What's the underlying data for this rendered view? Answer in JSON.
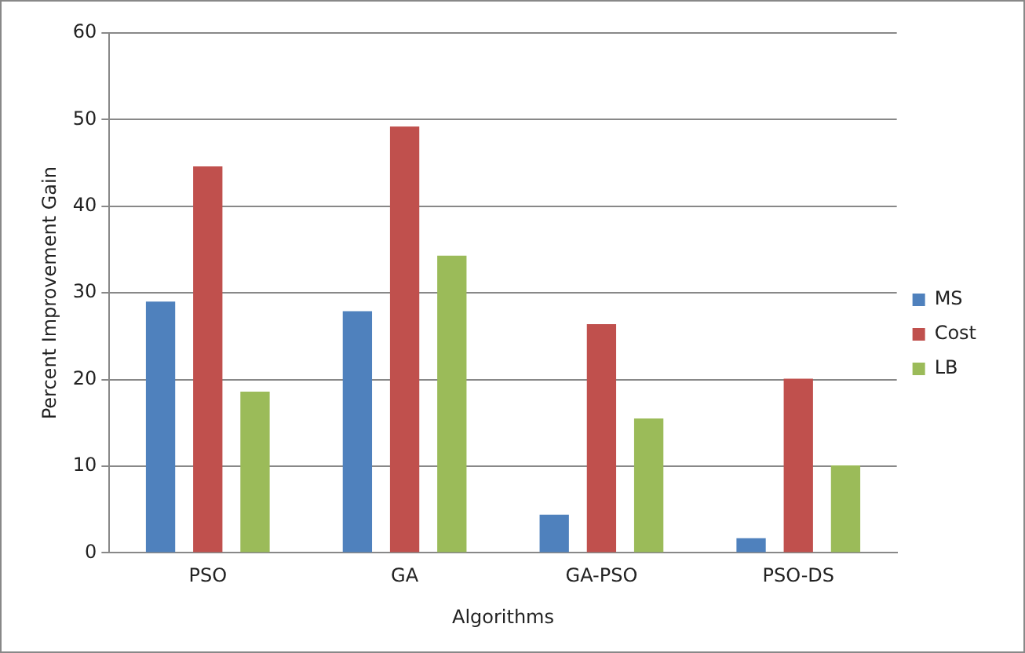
{
  "chart_data": {
    "type": "bar",
    "xlabel": "Algorithms",
    "ylabel": "Percent Improvement Gain",
    "categories": [
      "PSO",
      "GA",
      "GA-PSO",
      "PSO-DS"
    ],
    "series": [
      {
        "name": "MS",
        "color": "#4f81bd",
        "values": [
          29,
          27.9,
          4.4,
          1.7
        ]
      },
      {
        "name": "Cost",
        "color": "#c0504d",
        "values": [
          44.6,
          49.2,
          26.4,
          20.1
        ]
      },
      {
        "name": "LB",
        "color": "#9bbb59",
        "values": [
          18.6,
          34.3,
          15.5,
          10.1
        ]
      }
    ],
    "ylim": [
      0,
      60
    ],
    "yticks": [
      0,
      10,
      20,
      30,
      40,
      50,
      60
    ],
    "grid": "y",
    "legend": "right"
  }
}
